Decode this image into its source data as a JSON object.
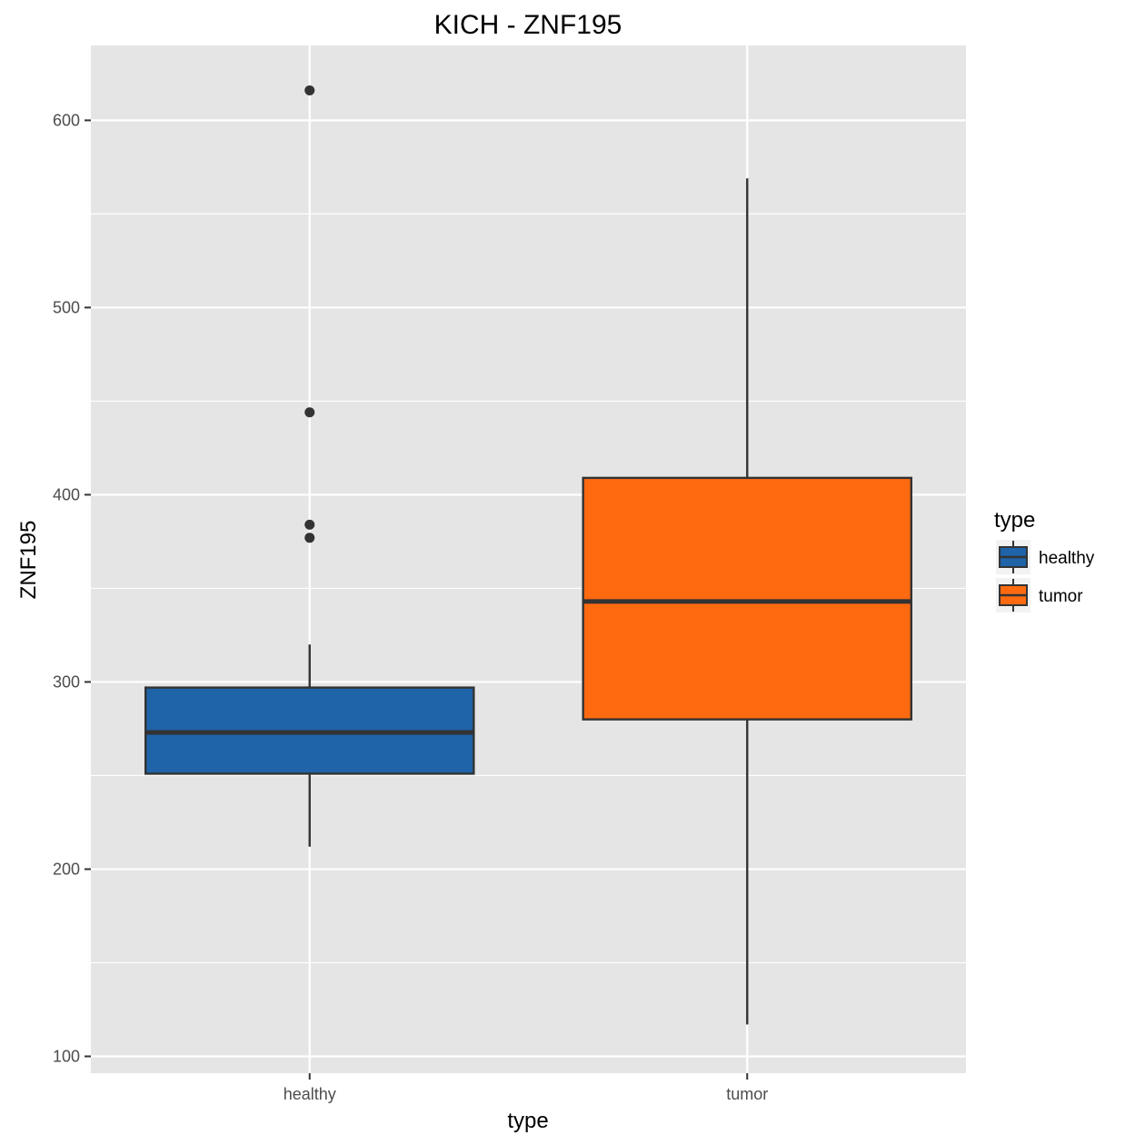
{
  "chart_data": {
    "type": "boxplot",
    "title": "KICH - ZNF195",
    "xlabel": "type",
    "ylabel": "ZNF195",
    "ylim": [
      91,
      640
    ],
    "y_ticks": [
      100,
      200,
      300,
      400,
      500,
      600
    ],
    "y_minor_ticks": [
      150,
      250,
      350,
      450,
      550
    ],
    "categories": [
      "healthy",
      "tumor"
    ],
    "boxes": [
      {
        "name": "healthy",
        "color": "#1f63a8",
        "whisker_low": 212,
        "q1": 251,
        "median": 273,
        "q3": 297,
        "whisker_high": 320,
        "outliers": [
          377,
          384,
          444,
          616
        ]
      },
      {
        "name": "tumor",
        "color": "#ff6a11",
        "whisker_low": 117,
        "q1": 280,
        "median": 343,
        "q3": 409,
        "whisker_high": 569,
        "outliers": []
      }
    ],
    "legend": {
      "title": "type",
      "position": "right",
      "entries": [
        {
          "label": "healthy",
          "color": "#1f63a8"
        },
        {
          "label": "tumor",
          "color": "#ff6a11"
        }
      ]
    },
    "grid": true,
    "panel_background": "#e5e5e5",
    "grid_color": "#ffffff",
    "outline_color": "#333333"
  }
}
